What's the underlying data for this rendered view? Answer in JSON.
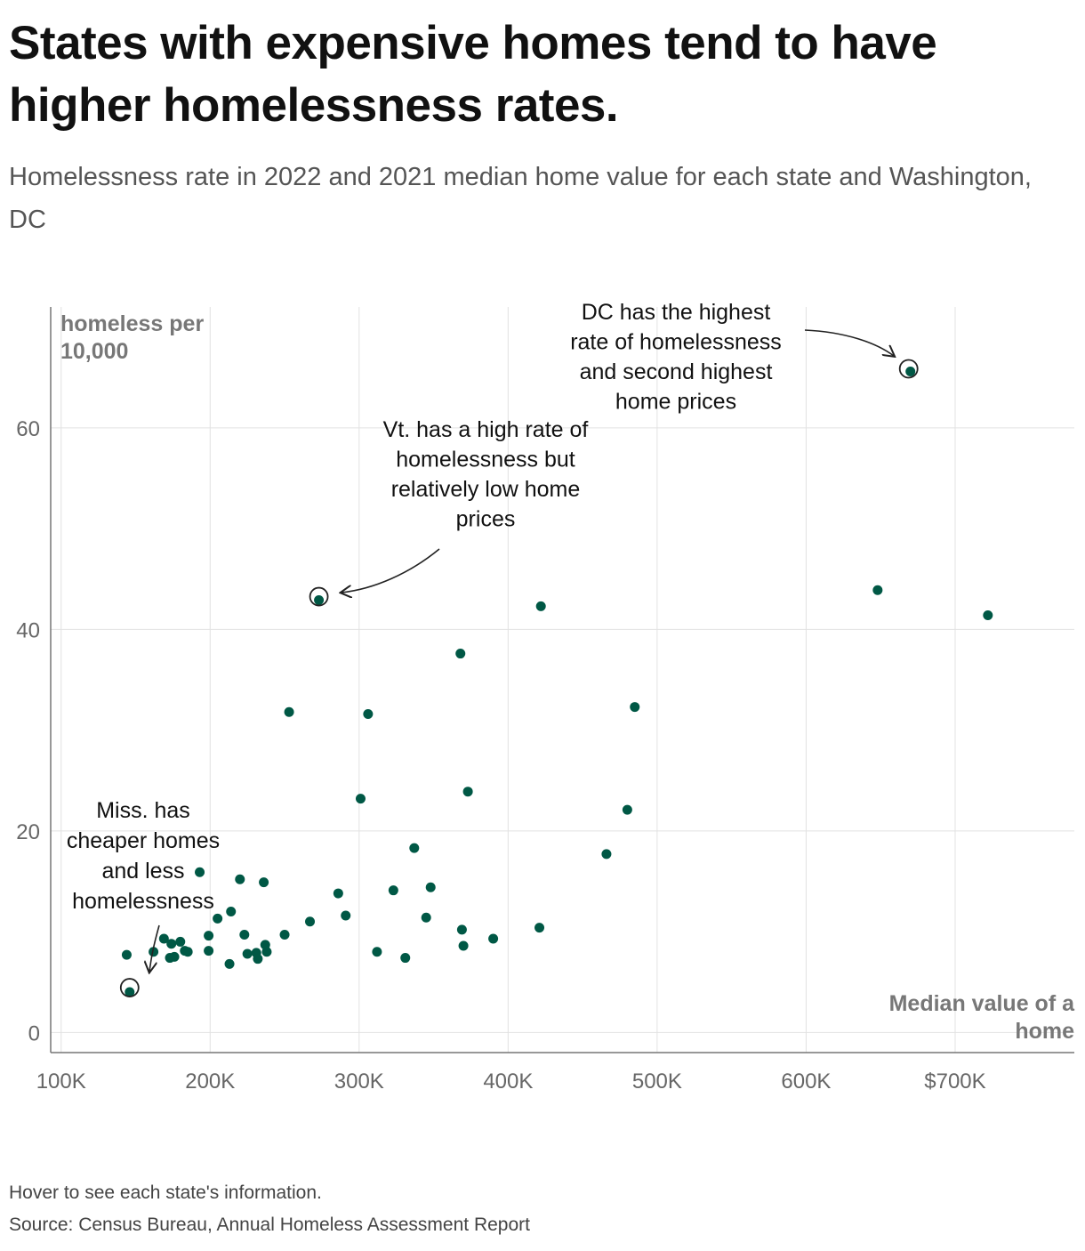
{
  "header": {
    "title": "States with expensive homes tend to have higher homelessness rates.",
    "subtitle": "Homelessness rate in 2022 and 2021 median home value for each state and Washington, DC"
  },
  "footer": {
    "note": "Hover to see each state's information.",
    "source": "Source: Census Bureau, Annual Homeless Assessment Report"
  },
  "colors": {
    "point": "#005845",
    "grid": "#e2e2e2",
    "axis": "#777777",
    "annotation": "#222222"
  },
  "chart_data": {
    "type": "scatter",
    "xlabel": "Median value of a home",
    "ylabel": "homeless per 10,000",
    "xlim": [
      93000,
      780000
    ],
    "ylim": [
      -2,
      72
    ],
    "x_ticks": [
      {
        "value": 100000,
        "label": "100K"
      },
      {
        "value": 200000,
        "label": "200K"
      },
      {
        "value": 300000,
        "label": "300K"
      },
      {
        "value": 400000,
        "label": "400K"
      },
      {
        "value": 500000,
        "label": "500K"
      },
      {
        "value": 600000,
        "label": "600K"
      },
      {
        "value": 700000,
        "label": "$700K"
      }
    ],
    "y_ticks": [
      {
        "value": 0,
        "label": "0"
      },
      {
        "value": 20,
        "label": "20"
      },
      {
        "value": 40,
        "label": "40"
      },
      {
        "value": 60,
        "label": "60"
      }
    ],
    "grid": true,
    "points": [
      {
        "x": 670000,
        "y": 65.6
      },
      {
        "x": 273000,
        "y": 42.9
      },
      {
        "x": 146000,
        "y": 4.0
      },
      {
        "x": 648000,
        "y": 43.9
      },
      {
        "x": 722000,
        "y": 41.4
      },
      {
        "x": 422000,
        "y": 42.3
      },
      {
        "x": 368000,
        "y": 37.6
      },
      {
        "x": 485000,
        "y": 32.3
      },
      {
        "x": 253000,
        "y": 31.8
      },
      {
        "x": 306000,
        "y": 31.6
      },
      {
        "x": 373000,
        "y": 23.9
      },
      {
        "x": 301000,
        "y": 23.2
      },
      {
        "x": 480000,
        "y": 22.1
      },
      {
        "x": 337000,
        "y": 18.3
      },
      {
        "x": 466000,
        "y": 17.7
      },
      {
        "x": 193000,
        "y": 15.9
      },
      {
        "x": 220000,
        "y": 15.2
      },
      {
        "x": 236000,
        "y": 14.9
      },
      {
        "x": 348000,
        "y": 14.4
      },
      {
        "x": 323000,
        "y": 14.1
      },
      {
        "x": 286000,
        "y": 13.8
      },
      {
        "x": 214000,
        "y": 12.0
      },
      {
        "x": 291000,
        "y": 11.6
      },
      {
        "x": 205000,
        "y": 11.3
      },
      {
        "x": 345000,
        "y": 11.4
      },
      {
        "x": 267000,
        "y": 11.0
      },
      {
        "x": 369000,
        "y": 10.2
      },
      {
        "x": 421000,
        "y": 10.4
      },
      {
        "x": 199000,
        "y": 9.6
      },
      {
        "x": 223000,
        "y": 9.7
      },
      {
        "x": 250000,
        "y": 9.7
      },
      {
        "x": 390000,
        "y": 9.3
      },
      {
        "x": 169000,
        "y": 9.3
      },
      {
        "x": 180000,
        "y": 9.0
      },
      {
        "x": 174000,
        "y": 8.8
      },
      {
        "x": 237000,
        "y": 8.7
      },
      {
        "x": 370000,
        "y": 8.6
      },
      {
        "x": 183000,
        "y": 8.1
      },
      {
        "x": 162000,
        "y": 8.0
      },
      {
        "x": 199000,
        "y": 8.1
      },
      {
        "x": 185000,
        "y": 8.0
      },
      {
        "x": 312000,
        "y": 8.0
      },
      {
        "x": 231000,
        "y": 7.9
      },
      {
        "x": 238000,
        "y": 8.0
      },
      {
        "x": 225000,
        "y": 7.8
      },
      {
        "x": 144000,
        "y": 7.7
      },
      {
        "x": 176000,
        "y": 7.5
      },
      {
        "x": 173000,
        "y": 7.4
      },
      {
        "x": 232000,
        "y": 7.3
      },
      {
        "x": 331000,
        "y": 7.4
      },
      {
        "x": 213000,
        "y": 6.8
      }
    ],
    "annotations": [
      {
        "lines": [
          "DC has the highest",
          "rate of homelessness",
          "and second highest",
          "home prices"
        ],
        "target": {
          "x": 670000,
          "y": 65.6
        }
      },
      {
        "lines": [
          "Vt. has a high rate of",
          "homelessness but",
          "relatively low home",
          "prices"
        ],
        "target": {
          "x": 273000,
          "y": 42.9
        }
      },
      {
        "lines": [
          "Miss. has",
          "cheaper homes",
          "and less",
          "homelessness"
        ],
        "target": {
          "x": 146000,
          "y": 4.0
        }
      }
    ]
  }
}
